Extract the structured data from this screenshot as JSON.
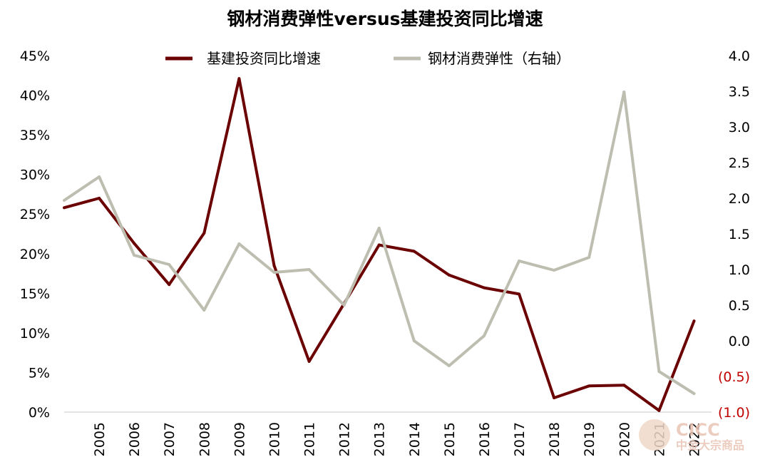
{
  "chart_data": {
    "type": "line",
    "title": "钢材消费弹性versus基建投资同比增速",
    "categories": [
      "2005",
      "2006",
      "2007",
      "2008",
      "2009",
      "2010",
      "2011",
      "2012",
      "2013",
      "2014",
      "2015",
      "2016",
      "2017",
      "2018",
      "2019",
      "2020",
      "2021",
      "2022"
    ],
    "series": [
      {
        "name": "基建投资同比增速",
        "axis": "left",
        "color": "#6b0000",
        "start_value": 25.8,
        "values": [
          27.0,
          21.3,
          16.1,
          22.6,
          42.1,
          18.5,
          6.4,
          13.7,
          21.1,
          20.3,
          17.3,
          15.7,
          14.9,
          1.8,
          3.3,
          3.4,
          0.2,
          11.5
        ]
      },
      {
        "name": "钢材消费弹性（右轴）",
        "axis": "right",
        "color": "#bdbdb0",
        "start_value": 1.97,
        "values": [
          2.3,
          1.2,
          1.07,
          0.43,
          1.36,
          0.96,
          1.0,
          0.5,
          1.58,
          0.0,
          -0.35,
          0.07,
          1.12,
          0.99,
          1.17,
          3.49,
          -0.43,
          -0.74
        ]
      }
    ],
    "y_left": {
      "min": 0,
      "max": 45,
      "step": 5,
      "ticks": [
        "0%",
        "5%",
        "10%",
        "15%",
        "20%",
        "25%",
        "30%",
        "35%",
        "40%",
        "45%"
      ]
    },
    "y_right": {
      "min": -1.0,
      "max": 4.0,
      "step": 0.5,
      "ticks": [
        "(1.0)",
        "(0.5)",
        "0.0",
        "0.5",
        "1.0",
        "1.5",
        "2.0",
        "2.5",
        "3.0",
        "3.5",
        "4.0"
      ],
      "negative_color": "#c00000"
    },
    "legend": {
      "placement": "top-center",
      "entries": [
        "基建投资同比增速",
        "钢材消费弹性（右轴）"
      ]
    },
    "watermark": {
      "line1": "CICC",
      "line2": "中金大宗商品"
    }
  }
}
